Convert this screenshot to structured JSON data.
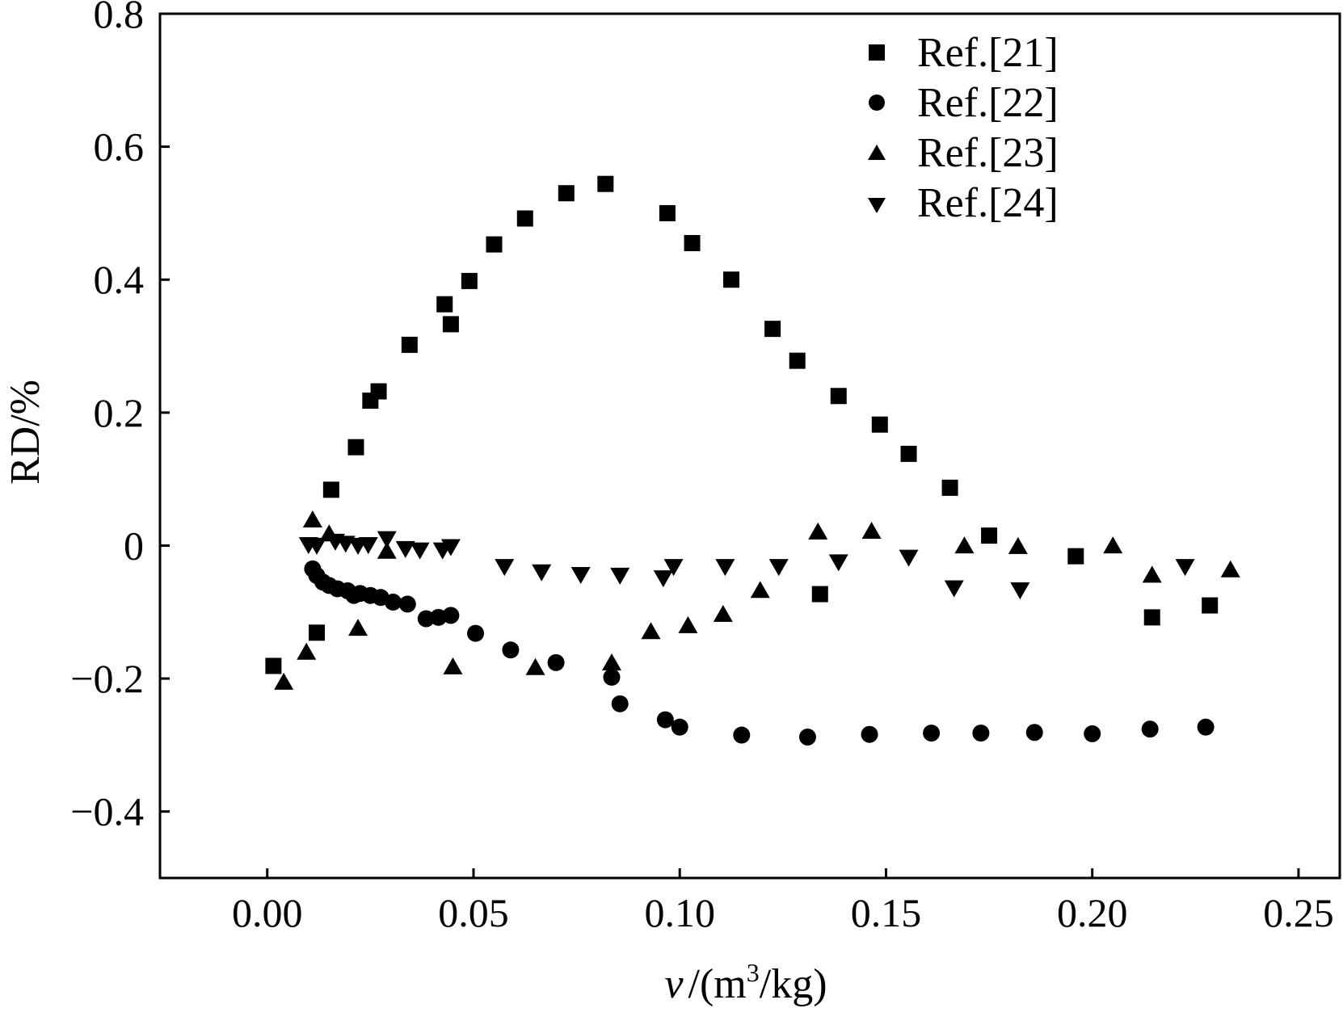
{
  "chart_data": {
    "type": "scatter",
    "title": "",
    "xlabel": {
      "var": "v",
      "unit_open": "/(m",
      "unit_sup": "3",
      "unit_close": "/kg)"
    },
    "ylabel": "RD/%",
    "xlim": [
      -0.026,
      0.26
    ],
    "ylim": [
      -0.5,
      0.8
    ],
    "x_ticks": [
      0.0,
      0.05,
      0.1,
      0.15,
      0.2,
      0.25
    ],
    "x_tick_labels": [
      "0.00",
      "0.05",
      "0.10",
      "0.15",
      "0.20",
      "0.25"
    ],
    "y_ticks": [
      -0.4,
      -0.2,
      0,
      0.2,
      0.4,
      0.6,
      0.8
    ],
    "y_tick_labels": [
      "−0.4",
      "−0.2",
      "0",
      "0.2",
      "0.4",
      "0.6",
      "0.8"
    ],
    "grid": false,
    "legend_position": "top-right",
    "marker_color": "#000000",
    "series": [
      {
        "name": "Ref.[21]",
        "marker": "square",
        "points": [
          [
            0.0015,
            -0.181
          ],
          [
            0.012,
            -0.131
          ],
          [
            0.0155,
            0.084
          ],
          [
            0.0215,
            0.148
          ],
          [
            0.025,
            0.218
          ],
          [
            0.027,
            0.232
          ],
          [
            0.0345,
            0.302
          ],
          [
            0.043,
            0.363
          ],
          [
            0.0445,
            0.333
          ],
          [
            0.049,
            0.398
          ],
          [
            0.055,
            0.453
          ],
          [
            0.0625,
            0.492
          ],
          [
            0.0725,
            0.53
          ],
          [
            0.082,
            0.544
          ],
          [
            0.097,
            0.5
          ],
          [
            0.103,
            0.455
          ],
          [
            0.1125,
            0.4
          ],
          [
            0.1225,
            0.326
          ],
          [
            0.1285,
            0.278
          ],
          [
            0.1385,
            0.225
          ],
          [
            0.1485,
            0.182
          ],
          [
            0.1555,
            0.138
          ],
          [
            0.1655,
            0.087
          ],
          [
            0.134,
            -0.073
          ],
          [
            0.175,
            0.015
          ],
          [
            0.196,
            -0.016
          ],
          [
            0.2145,
            -0.108
          ],
          [
            0.2285,
            -0.09
          ]
        ]
      },
      {
        "name": "Ref.[22]",
        "marker": "circle",
        "points": [
          [
            0.011,
            -0.035
          ],
          [
            0.012,
            -0.045
          ],
          [
            0.0135,
            -0.055
          ],
          [
            0.015,
            -0.06
          ],
          [
            0.017,
            -0.065
          ],
          [
            0.0195,
            -0.068
          ],
          [
            0.021,
            -0.075
          ],
          [
            0.0225,
            -0.072
          ],
          [
            0.025,
            -0.075
          ],
          [
            0.0275,
            -0.078
          ],
          [
            0.0305,
            -0.085
          ],
          [
            0.034,
            -0.088
          ],
          [
            0.0385,
            -0.11
          ],
          [
            0.0415,
            -0.108
          ],
          [
            0.0445,
            -0.105
          ],
          [
            0.0505,
            -0.132
          ],
          [
            0.059,
            -0.157
          ],
          [
            0.07,
            -0.176
          ],
          [
            0.0835,
            -0.198
          ],
          [
            0.0855,
            -0.238
          ],
          [
            0.0965,
            -0.262
          ],
          [
            0.1,
            -0.273
          ],
          [
            0.115,
            -0.285
          ],
          [
            0.131,
            -0.288
          ],
          [
            0.146,
            -0.284
          ],
          [
            0.161,
            -0.282
          ],
          [
            0.173,
            -0.282
          ],
          [
            0.186,
            -0.281
          ],
          [
            0.2,
            -0.283
          ],
          [
            0.214,
            -0.276
          ],
          [
            0.2275,
            -0.273
          ]
        ]
      },
      {
        "name": "Ref.[23]",
        "marker": "triangle-up",
        "points": [
          [
            0.004,
            -0.207
          ],
          [
            0.0095,
            -0.162
          ],
          [
            0.011,
            0.037
          ],
          [
            0.015,
            0.016
          ],
          [
            0.022,
            -0.126
          ],
          [
            0.029,
            -0.01
          ],
          [
            0.045,
            -0.184
          ],
          [
            0.065,
            -0.185
          ],
          [
            0.0835,
            -0.178
          ],
          [
            0.093,
            -0.131
          ],
          [
            0.102,
            -0.122
          ],
          [
            0.1105,
            -0.105
          ],
          [
            0.1195,
            -0.069
          ],
          [
            0.1335,
            0.019
          ],
          [
            0.1465,
            0.02
          ],
          [
            0.169,
            -0.002
          ],
          [
            0.182,
            -0.003
          ],
          [
            0.205,
            -0.002
          ],
          [
            0.2145,
            -0.046
          ],
          [
            0.2335,
            -0.038
          ]
        ]
      },
      {
        "name": "Ref.[24]",
        "marker": "triangle-down",
        "points": [
          [
            0.01,
            0.003
          ],
          [
            0.012,
            0.002
          ],
          [
            0.0165,
            0.008
          ],
          [
            0.019,
            0.005
          ],
          [
            0.022,
            0.002
          ],
          [
            0.0245,
            0.003
          ],
          [
            0.029,
            0.012
          ],
          [
            0.0335,
            -0.003
          ],
          [
            0.037,
            -0.005
          ],
          [
            0.0425,
            -0.005
          ],
          [
            0.0445,
            0.0
          ],
          [
            0.0575,
            -0.03
          ],
          [
            0.0665,
            -0.038
          ],
          [
            0.076,
            -0.042
          ],
          [
            0.0855,
            -0.043
          ],
          [
            0.096,
            -0.047
          ],
          [
            0.0985,
            -0.03
          ],
          [
            0.111,
            -0.03
          ],
          [
            0.124,
            -0.03
          ],
          [
            0.1385,
            -0.023
          ],
          [
            0.1555,
            -0.016
          ],
          [
            0.1665,
            -0.062
          ],
          [
            0.1825,
            -0.065
          ],
          [
            0.2225,
            -0.03
          ]
        ]
      }
    ]
  }
}
